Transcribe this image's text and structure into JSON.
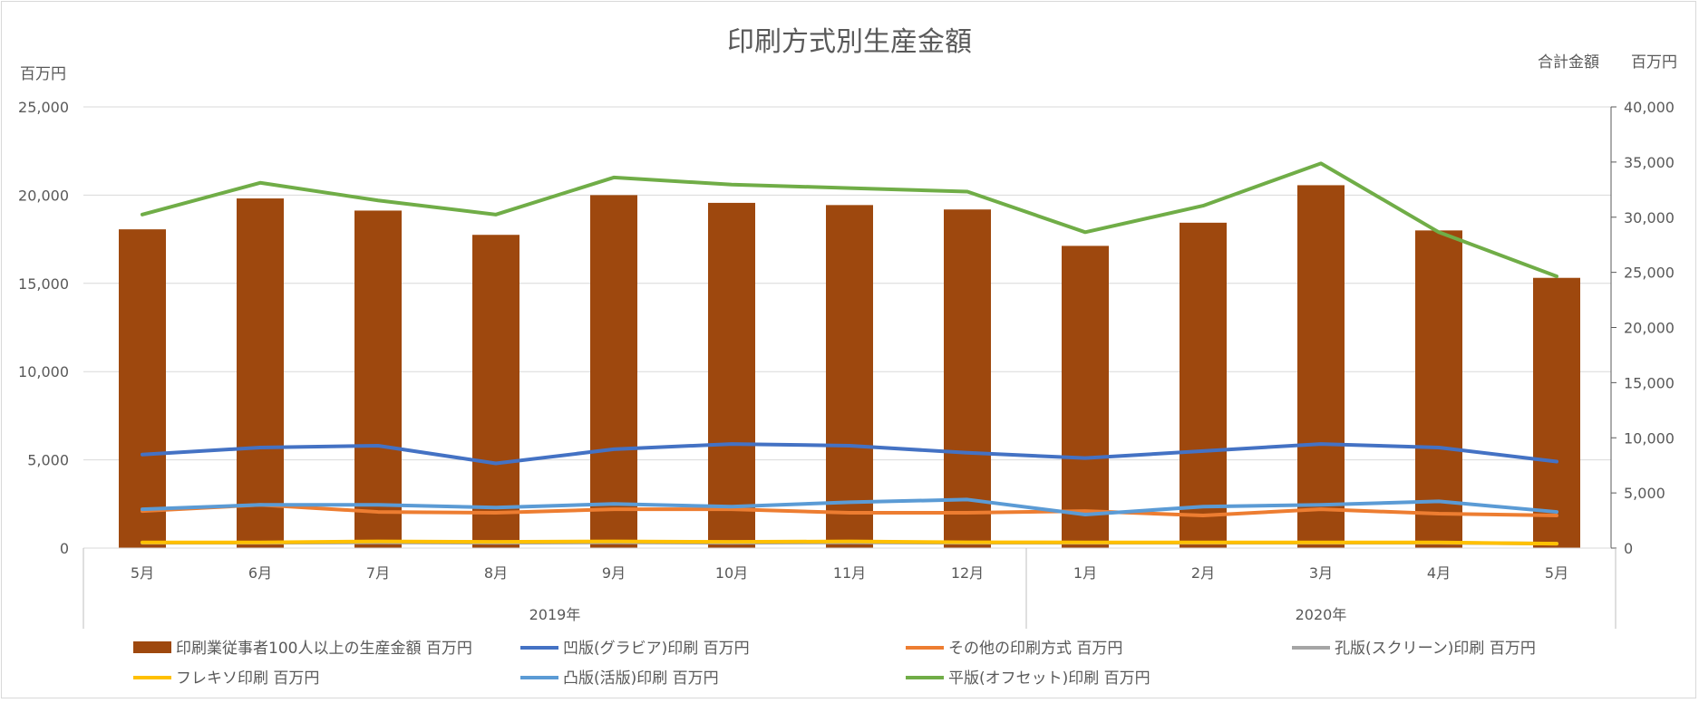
{
  "chart_data": {
    "type": "bar",
    "title": "印刷方式別生産金額",
    "ylabel": "百万円",
    "y2label_prefix": "合計金額",
    "y2label_unit": "百万円",
    "ylim": [
      0,
      25000
    ],
    "y2lim": [
      0,
      40000
    ],
    "yticks": [
      "0",
      "5,000",
      "10,000",
      "15,000",
      "20,000",
      "25,000"
    ],
    "y2ticks": [
      "0",
      "5,000",
      "10,000",
      "15,000",
      "20,000",
      "25,000",
      "30,000",
      "35,000",
      "40,000"
    ],
    "categories": [
      "5月",
      "6月",
      "7月",
      "8月",
      "9月",
      "10月",
      "11月",
      "12月",
      "1月",
      "2月",
      "3月",
      "4月",
      "5月"
    ],
    "groups": [
      {
        "label": "2019年",
        "count": 8
      },
      {
        "label": "2020年",
        "count": 5
      }
    ],
    "grid": true,
    "legend_position": "bottom",
    "series": [
      {
        "name": "印刷業従事者100人以上の生産金額 百万円",
        "kind": "bar",
        "axis": "right",
        "color": "#9E480E",
        "values": [
          28900,
          31700,
          30600,
          28400,
          32000,
          31300,
          31100,
          30700,
          27400,
          29500,
          32900,
          28800,
          24500
        ]
      },
      {
        "name": "凹版(グラビア)印刷 百万円",
        "kind": "line",
        "axis": "left",
        "color": "#4472C4",
        "values": [
          5300,
          5700,
          5800,
          4800,
          5600,
          5900,
          5800,
          5400,
          5100,
          5500,
          5900,
          5700,
          4900
        ]
      },
      {
        "name": "その他の印刷方式 百万円",
        "kind": "line",
        "axis": "left",
        "color": "#ED7D31",
        "values": [
          2100,
          2450,
          2050,
          2000,
          2200,
          2200,
          2000,
          2000,
          2100,
          1850,
          2200,
          1950,
          1850
        ]
      },
      {
        "name": "孔版(スクリーン)印刷 百万円",
        "kind": "line",
        "axis": "left",
        "color": "#A5A5A5",
        "values": [
          300,
          300,
          320,
          300,
          320,
          300,
          320,
          300,
          300,
          300,
          300,
          300,
          250
        ]
      },
      {
        "name": "フレキソ印刷 百万円",
        "kind": "line",
        "axis": "left",
        "color": "#FFC000",
        "values": [
          320,
          320,
          380,
          350,
          380,
          350,
          380,
          330,
          320,
          320,
          320,
          320,
          250
        ]
      },
      {
        "name": "凸版(活版)印刷 百万円",
        "kind": "line",
        "axis": "left",
        "color": "#5B9BD5",
        "values": [
          2200,
          2450,
          2450,
          2300,
          2500,
          2350,
          2600,
          2750,
          1900,
          2350,
          2450,
          2650,
          2050
        ]
      },
      {
        "name": "平版(オフセット)印刷 百万円",
        "kind": "line",
        "axis": "left",
        "color": "#70AD47",
        "values": [
          18900,
          20700,
          19700,
          18900,
          21000,
          20600,
          20400,
          20200,
          17900,
          19400,
          21800,
          17900,
          15400
        ]
      }
    ]
  }
}
